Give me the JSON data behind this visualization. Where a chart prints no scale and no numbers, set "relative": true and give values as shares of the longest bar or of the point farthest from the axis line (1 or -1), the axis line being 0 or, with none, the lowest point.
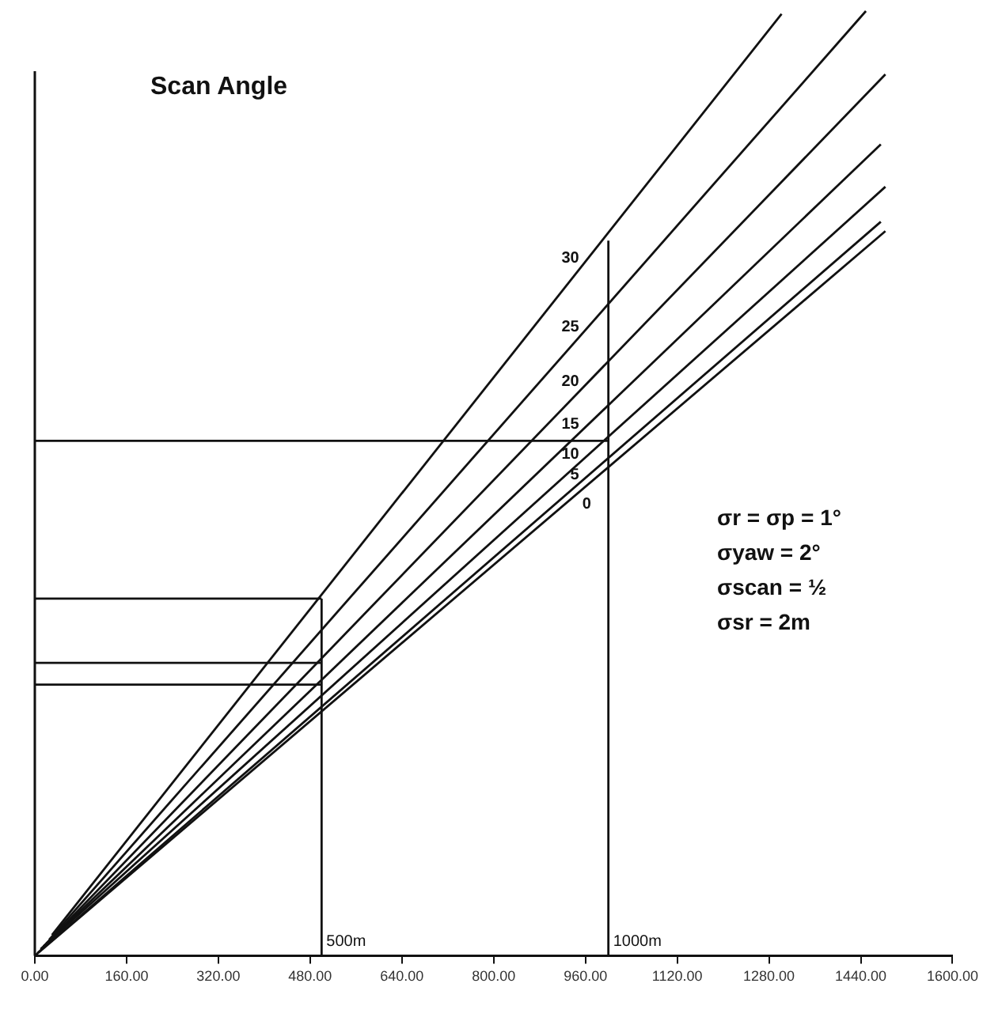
{
  "chart_data": {
    "type": "line",
    "title": "Scan Angle",
    "relative": true,
    "grid": false,
    "legend": false,
    "marker": "none",
    "line_style": "solid",
    "xlim": [
      0,
      1600
    ],
    "xticks": [
      {
        "value": 0,
        "label": "0.00"
      },
      {
        "value": 160,
        "label": "160.00"
      },
      {
        "value": 320,
        "label": "320.00"
      },
      {
        "value": 480,
        "label": "480.00"
      },
      {
        "value": 640,
        "label": "640.00"
      },
      {
        "value": 800,
        "label": "800.00"
      },
      {
        "value": 960,
        "label": "960.00"
      },
      {
        "value": 1120,
        "label": "1120.00"
      },
      {
        "value": 1280,
        "label": "1280.00"
      },
      {
        "value": 1440,
        "label": "1440.00"
      },
      {
        "value": 1600,
        "label": "1600.00"
      }
    ],
    "series": [
      {
        "name": "30",
        "color": "#111111",
        "x": [
          30,
          1302
        ],
        "values": [
          0.022,
          0.997
        ]
      },
      {
        "name": "25",
        "color": "#111111",
        "x": [
          25,
          1449
        ],
        "values": [
          0.017,
          1
        ]
      },
      {
        "name": "20",
        "color": "#111111",
        "x": [
          20,
          1483
        ],
        "values": [
          0.013,
          0.933
        ]
      },
      {
        "name": "15",
        "color": "#111111",
        "x": [
          15,
          1475
        ],
        "values": [
          0.01,
          0.859
        ]
      },
      {
        "name": "10",
        "color": "#111111",
        "x": [
          10,
          1483
        ],
        "values": [
          0.007,
          0.814
        ]
      },
      {
        "name": "5",
        "color": "#111111",
        "x": [
          5,
          1475
        ],
        "values": [
          0.003,
          0.777
        ]
      },
      {
        "name": "0",
        "color": "#111111",
        "x": [
          0,
          1483
        ],
        "values": [
          0,
          0.767
        ]
      },
      {
        "color": "#111111",
        "x": [
          0,
          500
        ],
        "values": [
          0.378,
          0.378
        ]
      },
      {
        "color": "#111111",
        "x": [
          0,
          500
        ],
        "values": [
          0.31,
          0.31
        ]
      },
      {
        "color": "#111111",
        "x": [
          0,
          500
        ],
        "values": [
          0.287,
          0.287
        ]
      },
      {
        "color": "#111111",
        "x": [
          0,
          1000
        ],
        "values": [
          0.545,
          0.545
        ]
      },
      {
        "color": "#111111",
        "x": [
          500,
          500
        ],
        "values": [
          0,
          0.378
        ]
      },
      {
        "color": "#111111",
        "x": [
          1000,
          1000
        ],
        "values": [
          0,
          0.757
        ]
      }
    ],
    "annotations": [
      {
        "text": "500m",
        "x": 500,
        "y": 0
      },
      {
        "text": "1000m",
        "x": 1000,
        "y": 0
      },
      "σr = σp = 1°",
      "σyaw = 2°",
      "σscan = ½",
      "σsr = 2m"
    ]
  }
}
